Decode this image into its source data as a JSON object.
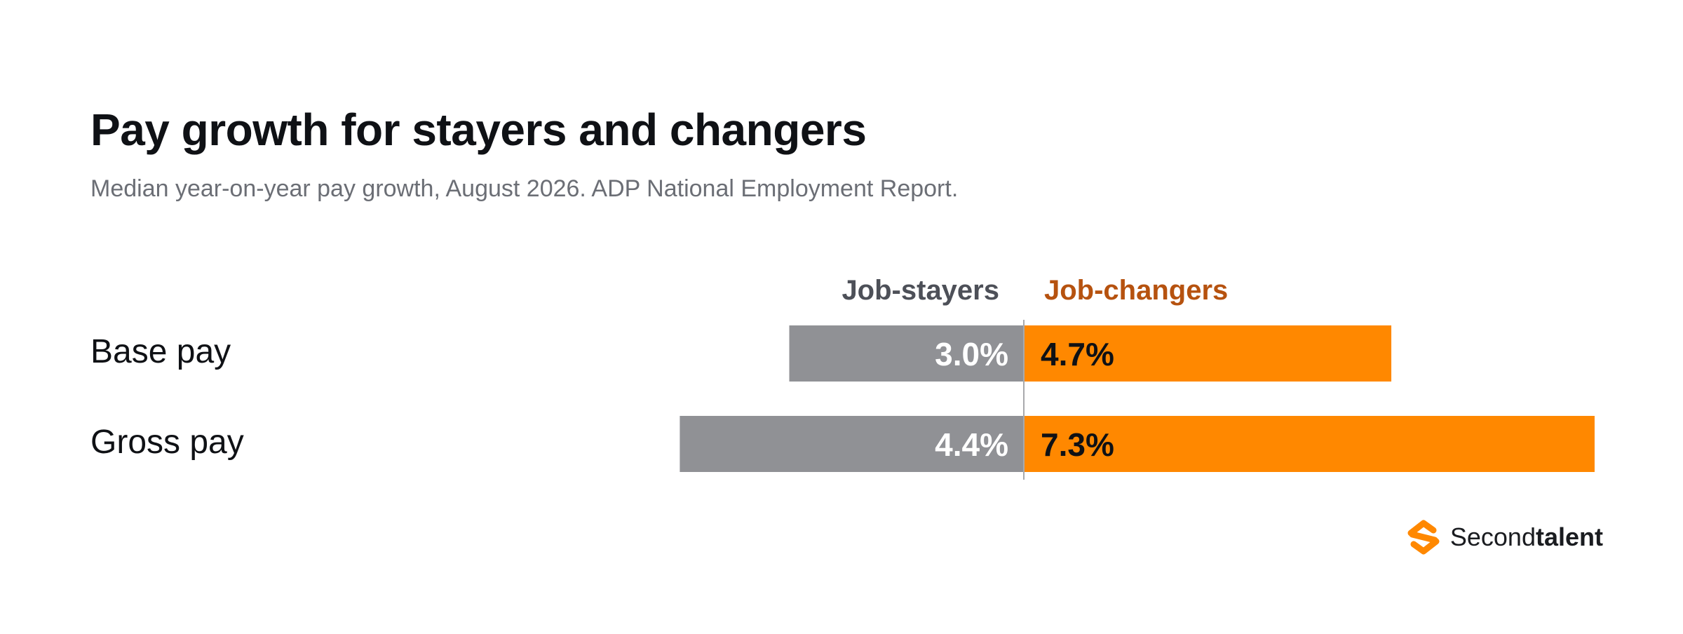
{
  "chart_data": {
    "type": "bar",
    "title": "Pay growth for stayers and changers",
    "subtitle": "Median year-on-year pay growth, August 2026. ADP National Employment Report.",
    "categories": [
      "Base pay",
      "Gross pay"
    ],
    "series": [
      {
        "name": "Job-stayers",
        "values": [
          3.0,
          4.4
        ],
        "labels": [
          "3.0%",
          "4.4%"
        ],
        "color": "#909195"
      },
      {
        "name": "Job-changers",
        "values": [
          4.7,
          7.3
        ],
        "labels": [
          "4.7%",
          "7.3%"
        ],
        "color": "#ff8800"
      }
    ],
    "layout_style": "diverging"
  },
  "brand": {
    "part1": "Second",
    "part2": "talent",
    "logo_icon": "secondtalent-s-logo-icon",
    "color": "#ff8800"
  }
}
